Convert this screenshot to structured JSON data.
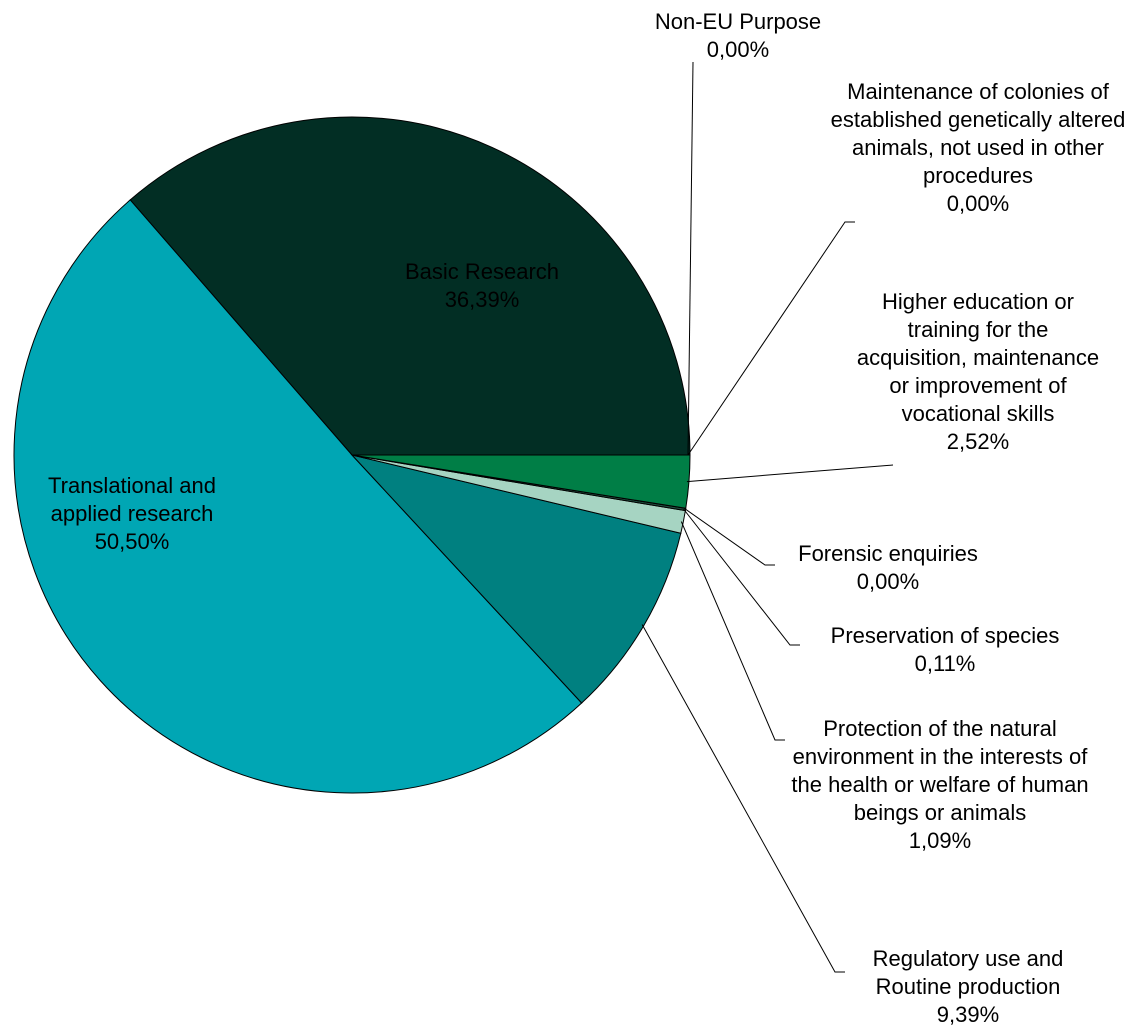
{
  "chart_data": {
    "type": "pie",
    "categories": [
      "Basic Research",
      "Translational and applied research",
      "Regulatory use and Routine production",
      "Protection of the natural environment in the interests of the health or welfare of human beings or animals",
      "Preservation of species",
      "Forensic enquiries",
      "Higher education or training for the acquisition, maintenance or improvement of vocational skills",
      "Maintenance of colonies of established genetically altered animals, not used in other procedures",
      "Non-EU Purpose"
    ],
    "values": [
      36.39,
      50.5,
      9.39,
      1.09,
      0.11,
      0.0,
      2.52,
      0.0,
      0.0
    ],
    "value_labels": [
      "36,39%",
      "50,50%",
      "9,39%",
      "1,09%",
      "0,11%",
      "0,00%",
      "2,52%",
      "0,00%",
      "0,00%"
    ],
    "colors": [
      "#022e24",
      "#00a6b4",
      "#008080",
      "#a6d4c2",
      "#1f4f3f",
      "#2f6f5a",
      "#007e46",
      "#4f9f80",
      "#0f3f30"
    ]
  }
}
